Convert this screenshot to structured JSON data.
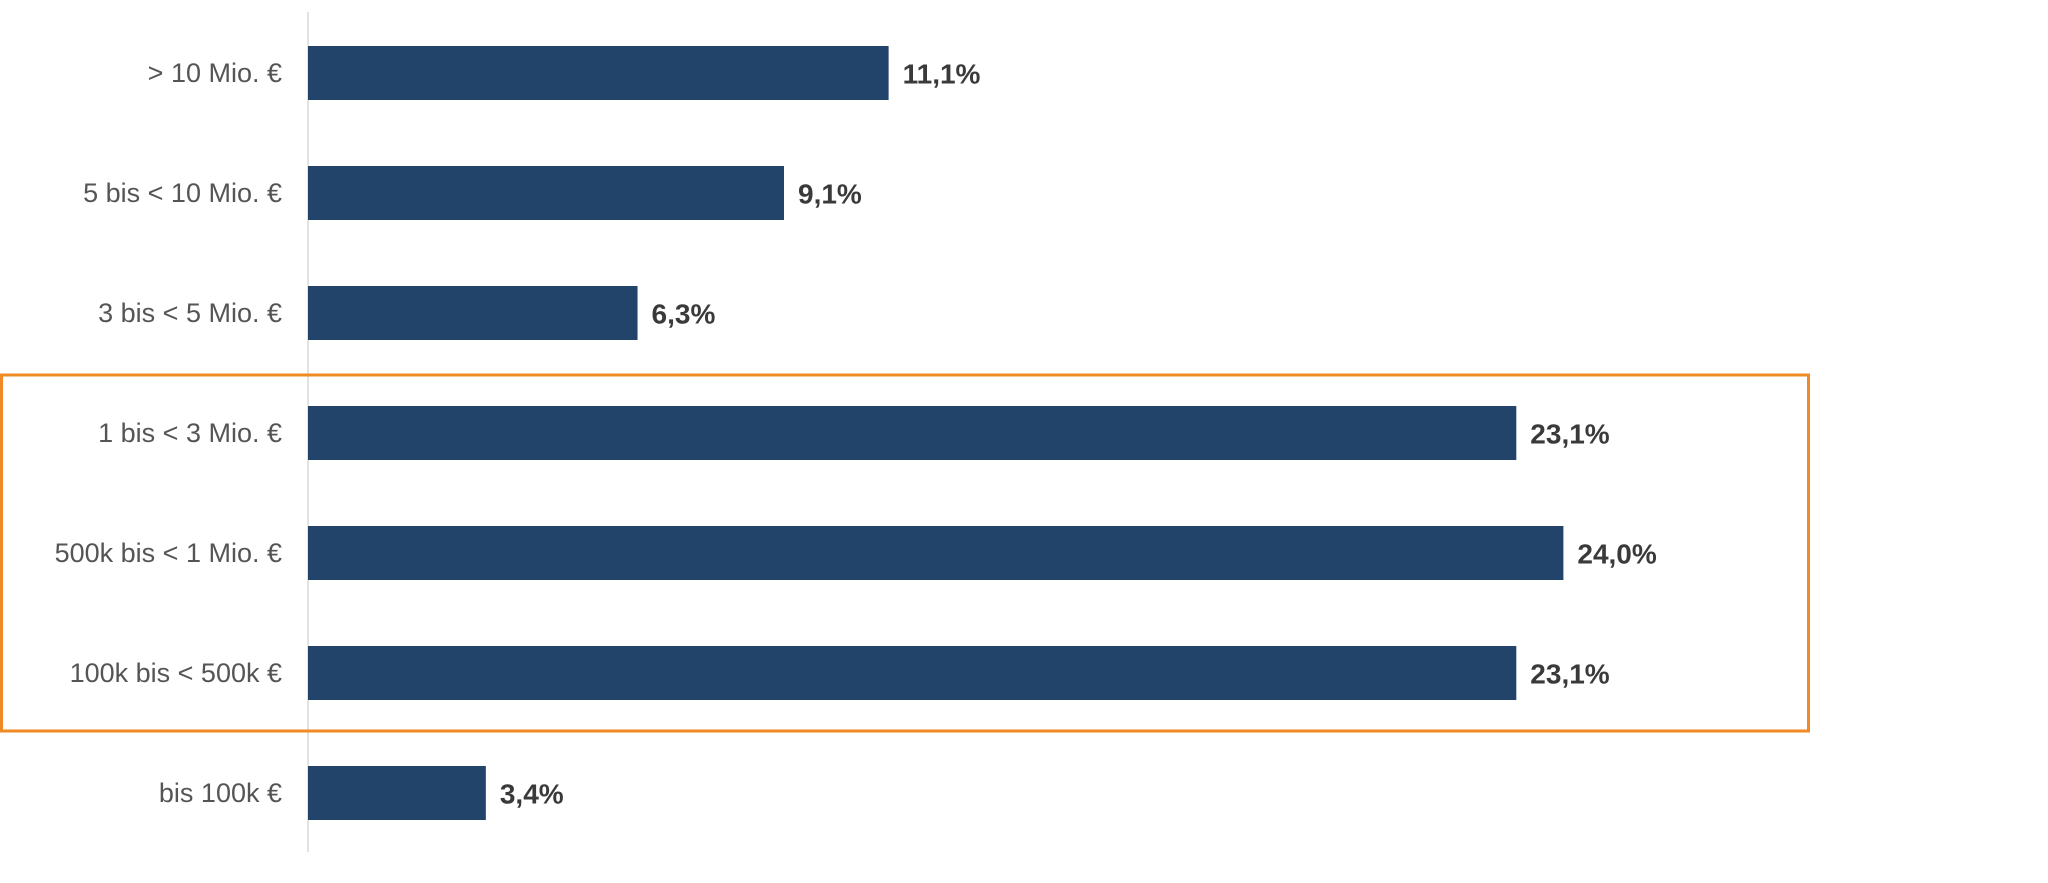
{
  "chart_data": {
    "type": "bar",
    "orientation": "horizontal",
    "categories": [
      "> 10 Mio. €",
      "5 bis < 10 Mio. €",
      "3 bis < 5 Mio. €",
      "1 bis  < 3 Mio. €",
      "500k bis < 1 Mio. €",
      "100k bis < 500k €",
      "bis 100k €"
    ],
    "values": [
      11.1,
      9.1,
      6.3,
      23.1,
      24.0,
      23.1,
      3.4
    ],
    "value_labels": [
      "11,1%",
      "9,1%",
      "6,3%",
      "23,1%",
      "24,0%",
      "23,1%",
      "3,4%"
    ],
    "xlim": [
      0,
      26
    ],
    "grid": false,
    "legend": "none",
    "highlight": {
      "categories": [
        "1 bis  < 3 Mio. €",
        "500k bis < 1 Mio. €",
        "100k bis < 500k €"
      ],
      "color": "#F08A24"
    },
    "colors": {
      "bar": "#22446A",
      "axis": "#D9D9D9",
      "category_text": "#555555",
      "value_text": "#3A3A3A"
    }
  }
}
